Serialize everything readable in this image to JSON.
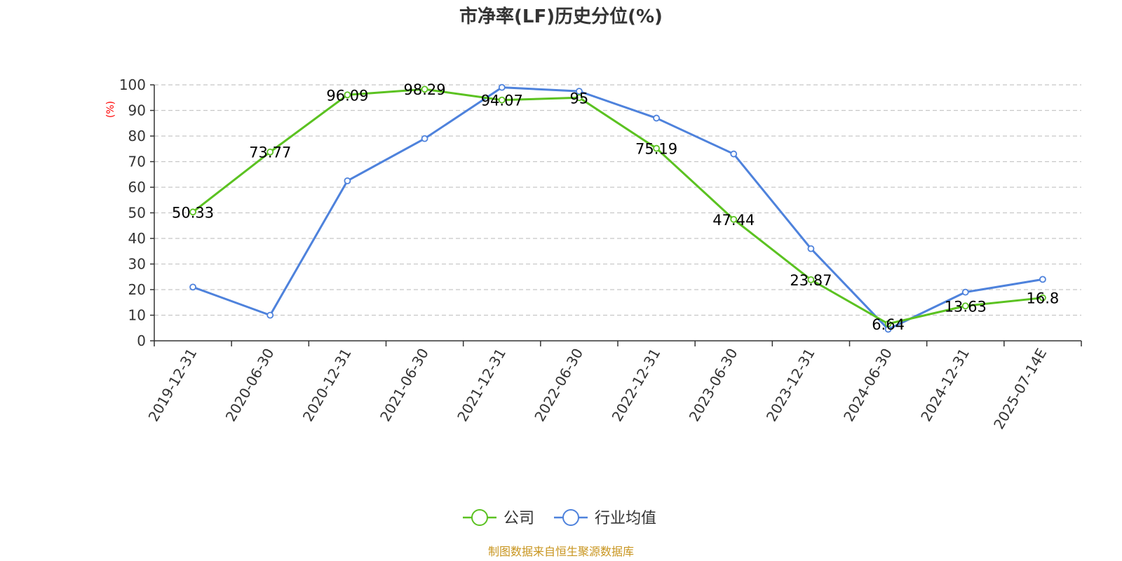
{
  "chart_data": {
    "type": "line",
    "title": "市净率(LF)历史分位(%)",
    "ylabel": "(%)",
    "ylim": [
      0,
      100
    ],
    "yticks": [
      0,
      10,
      20,
      30,
      40,
      50,
      60,
      70,
      80,
      90,
      100
    ],
    "grid": true,
    "legend_position": "bottom",
    "categories": [
      "2019-12-31",
      "2020-06-30",
      "2020-12-31",
      "2021-06-30",
      "2021-12-31",
      "2022-06-30",
      "2022-12-31",
      "2023-06-30",
      "2023-12-31",
      "2024-06-30",
      "2024-12-31",
      "2025-07-14E"
    ],
    "series": [
      {
        "name": "公司",
        "color": "#5bc221",
        "values": [
          50.33,
          73.77,
          96.09,
          98.29,
          94.07,
          95,
          75.19,
          47.44,
          23.87,
          6.64,
          13.63,
          16.8
        ],
        "labels": [
          "50.33",
          "73.77",
          "96.09",
          "98.29",
          "94.07",
          "95",
          "75.19",
          "47.44",
          "23.87",
          "6.64",
          "13.63",
          "16.8"
        ]
      },
      {
        "name": "行业均值",
        "color": "#4e82dc",
        "values": [
          21,
          10,
          62.5,
          79,
          99,
          97.5,
          87,
          73,
          36,
          4.5,
          19,
          24
        ]
      }
    ],
    "source": "制图数据来自恒生聚源数据库"
  }
}
